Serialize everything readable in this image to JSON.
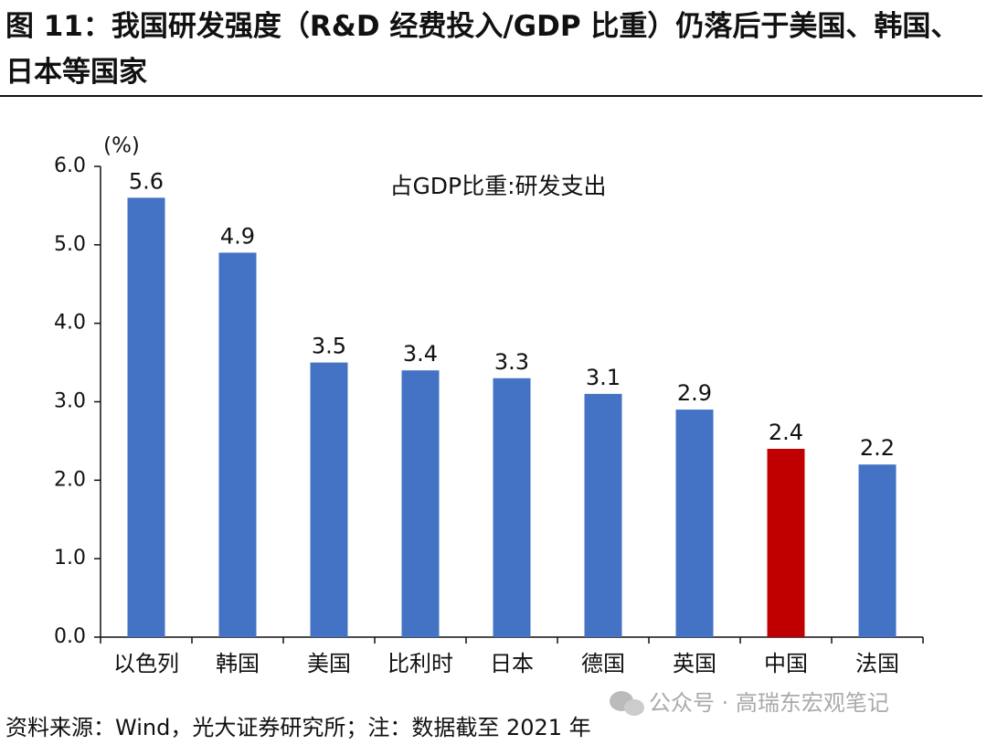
{
  "chart_data": {
    "type": "bar",
    "title": "图 11：我国研发强度（R&D 经费投入/GDP 比重）仍落后于美国、韩国、日本等国家",
    "y_unit": "(%)",
    "categories": [
      "以色列",
      "韩国",
      "美国",
      "比利时",
      "日本",
      "德国",
      "英国",
      "中国",
      "法国"
    ],
    "series": [
      {
        "name": "占GDP比重:研发支出",
        "values": [
          5.6,
          4.9,
          3.5,
          3.4,
          3.3,
          3.1,
          2.9,
          2.4,
          2.2
        ],
        "colors": [
          "#4472c4",
          "#4472c4",
          "#4472c4",
          "#4472c4",
          "#4472c4",
          "#4472c4",
          "#4472c4",
          "#c00000",
          "#4472c4"
        ]
      }
    ],
    "ylim": [
      0,
      6
    ],
    "yticks": [
      {
        "value": 0,
        "label": "0.0"
      },
      {
        "value": 1,
        "label": "1.0"
      },
      {
        "value": 2,
        "label": "2.0"
      },
      {
        "value": 3,
        "label": "3.0"
      },
      {
        "value": 4,
        "label": "4.0"
      },
      {
        "value": 5,
        "label": "5.0"
      },
      {
        "value": 6,
        "label": "6.0"
      }
    ],
    "grid": false
  },
  "source": "资料来源：Wind，光大证券研究所；注：数据截至 2021 年",
  "watermark": "公众号 · 高瑞东宏观笔记"
}
